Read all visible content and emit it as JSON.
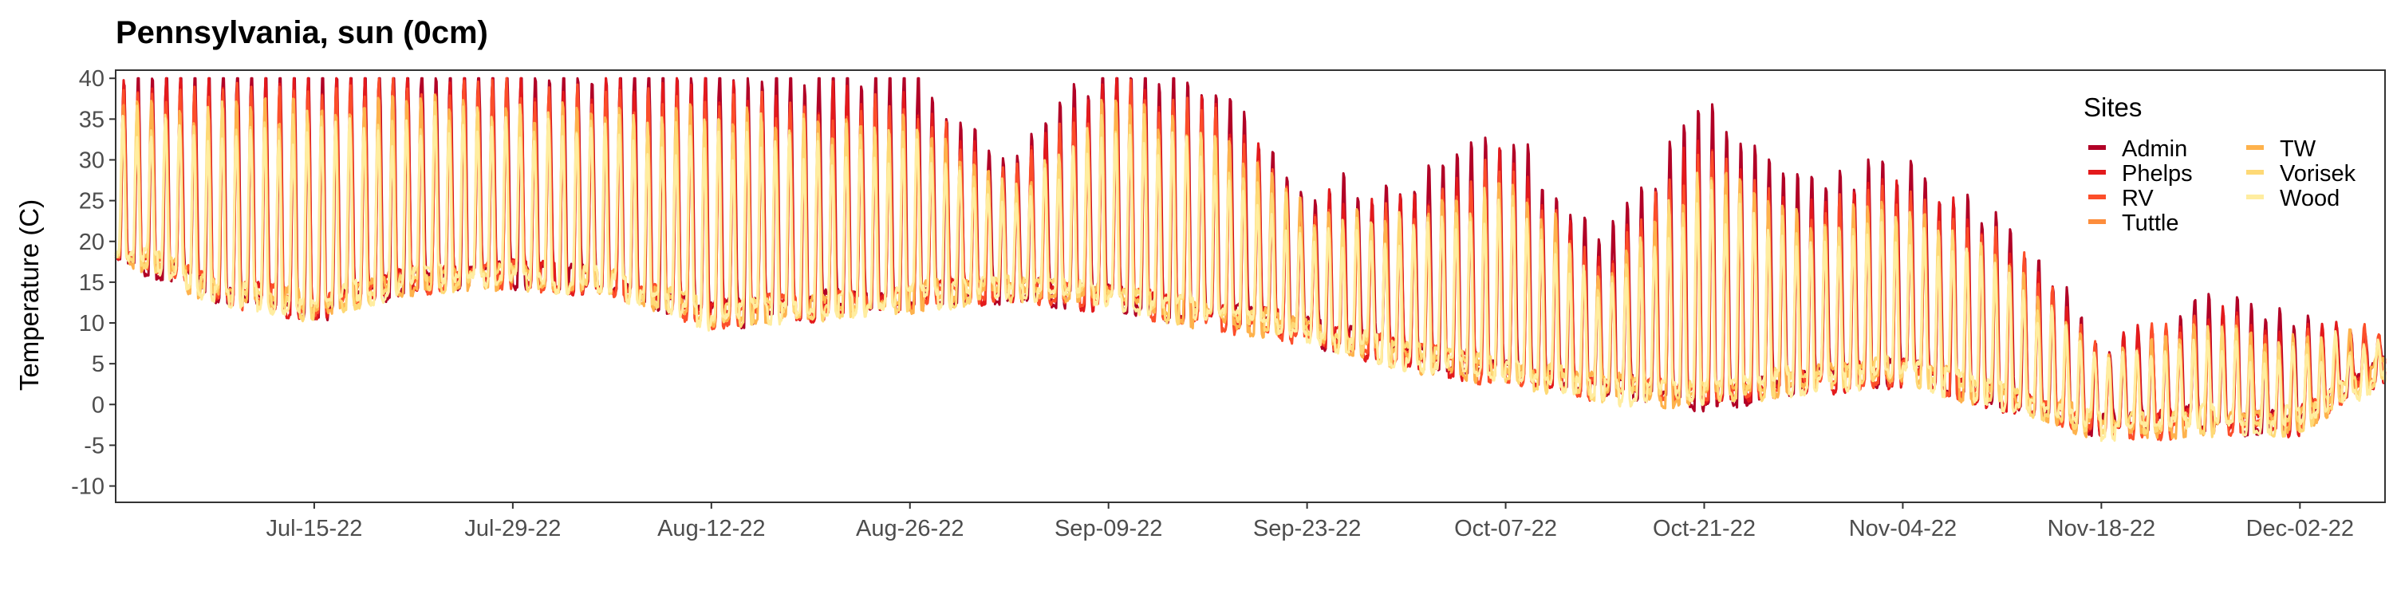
{
  "chart_data": {
    "type": "line",
    "title": "Pennsylvania, sun (0cm)",
    "xlabel": "",
    "ylabel": "Temperature (C)",
    "x_range": [
      "2022-07-01",
      "2022-12-08"
    ],
    "ylim": [
      -12,
      41
    ],
    "x_ticks": [
      "Jul-15-22",
      "Jul-29-22",
      "Aug-12-22",
      "Aug-26-22",
      "Sep-09-22",
      "Sep-23-22",
      "Oct-07-22",
      "Oct-21-22",
      "Nov-04-22",
      "Nov-18-22",
      "Dec-02-22"
    ],
    "y_ticks": [
      40,
      35,
      30,
      25,
      20,
      15,
      10,
      5,
      0,
      -5,
      -10
    ],
    "grid": false,
    "legend": {
      "title": "Sites",
      "placement": "top-right",
      "entries": [
        "Admin",
        "Phelps",
        "RV",
        "Tuttle",
        "TW",
        "Vorisek",
        "Wood"
      ]
    },
    "series": [
      {
        "name": "Admin",
        "color": "#b10026"
      },
      {
        "name": "Phelps",
        "color": "#e31a1c"
      },
      {
        "name": "RV",
        "color": "#fc4e2a"
      },
      {
        "name": "Tuttle",
        "color": "#fd8d3c"
      },
      {
        "name": "TW",
        "color": "#feb24c"
      },
      {
        "name": "Vorisek",
        "color": "#fed976"
      },
      {
        "name": "Wood",
        "color": "#ffeda0"
      }
    ],
    "daily_profile": {
      "dates": [
        "2022-07-01",
        "2022-07-08",
        "2022-07-15",
        "2022-07-22",
        "2022-07-29",
        "2022-08-05",
        "2022-08-12",
        "2022-08-19",
        "2022-08-26",
        "2022-09-02",
        "2022-09-09",
        "2022-09-16",
        "2022-09-23",
        "2022-09-30",
        "2022-10-07",
        "2022-10-14",
        "2022-10-21",
        "2022-10-28",
        "2022-11-04",
        "2022-11-11",
        "2022-11-18",
        "2022-11-25",
        "2022-12-02",
        "2022-12-08"
      ],
      "daily_min": [
        19,
        14,
        12,
        15,
        16,
        15,
        11,
        12,
        13,
        14,
        13,
        11,
        9,
        6,
        4,
        2,
        1,
        3,
        4,
        1,
        -3,
        -2,
        -2,
        4
      ],
      "daily_max": [
        38,
        39,
        39,
        39,
        39,
        38,
        38,
        37,
        37,
        27,
        39,
        36,
        24,
        24,
        30,
        17,
        32,
        24,
        26,
        20,
        6,
        10,
        8,
        8
      ]
    }
  }
}
